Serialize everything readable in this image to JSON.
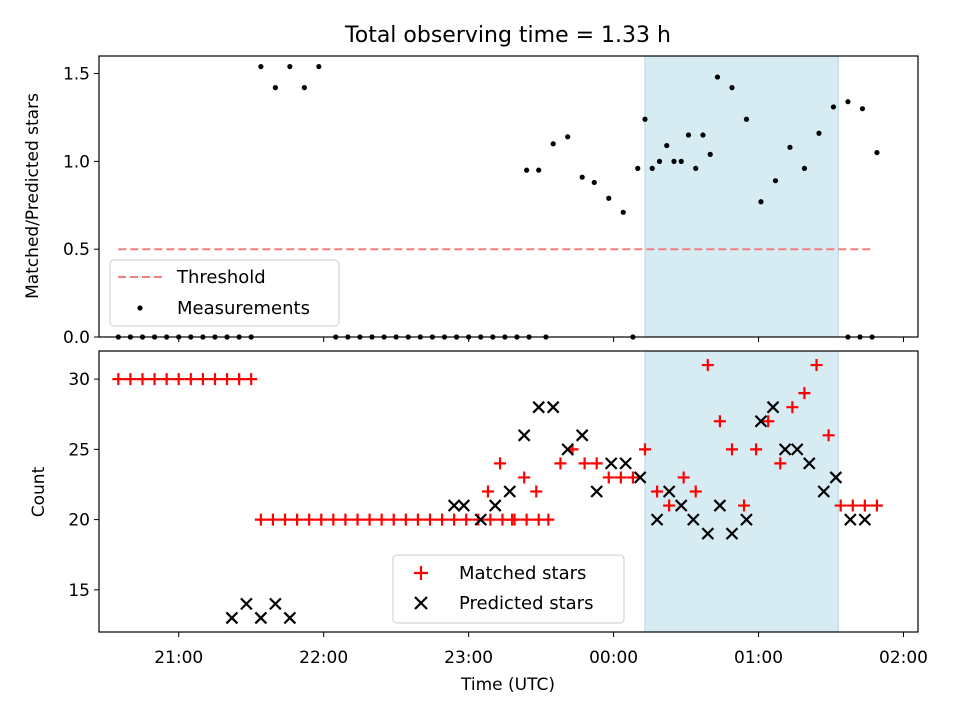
{
  "title": "Total observing time = 1.33 h",
  "colors": {
    "measurements": "#000000",
    "threshold": "#f08080",
    "matched": "#ff0000",
    "predicted": "#000000",
    "span_fill": "#add8e6"
  },
  "chart_data": [
    {
      "type": "scatter",
      "panel": "top",
      "ylabel": "Matched/Predicted stars",
      "xlabel": "",
      "xlim": [
        "20:27",
        "02:06"
      ],
      "ylim": [
        0,
        1.6
      ],
      "yticks": [
        0.0,
        0.5,
        1.0,
        1.5
      ],
      "ytick_labels": [
        "0.0",
        "0.5",
        "1.0",
        "1.5"
      ],
      "highlight_span": [
        "00:13",
        "01:33"
      ],
      "legend": {
        "placement": "lower-left",
        "entries": [
          {
            "label": "Threshold",
            "marker": "dashed-line",
            "color": "#f08080"
          },
          {
            "label": "Measurements",
            "marker": "dot",
            "color": "#000000"
          }
        ]
      },
      "threshold": {
        "name": "Threshold",
        "value": 0.5,
        "x_range": [
          "20:35",
          "01:48"
        ]
      },
      "series": [
        {
          "name": "Measurements",
          "marker": "dot",
          "points": [
            [
              "20:35",
              0.0
            ],
            [
              "20:40",
              0.0
            ],
            [
              "20:45",
              0.0
            ],
            [
              "20:50",
              0.0
            ],
            [
              "20:55",
              0.0
            ],
            [
              "21:00",
              0.0
            ],
            [
              "21:05",
              0.0
            ],
            [
              "21:10",
              0.0
            ],
            [
              "21:15",
              0.0
            ],
            [
              "21:20",
              0.0
            ],
            [
              "21:25",
              0.0
            ],
            [
              "21:30",
              0.0
            ],
            [
              "21:34",
              1.54
            ],
            [
              "21:40",
              1.42
            ],
            [
              "21:46",
              1.54
            ],
            [
              "21:52",
              1.42
            ],
            [
              "21:58",
              1.54
            ],
            [
              "22:05",
              0.0
            ],
            [
              "22:10",
              0.0
            ],
            [
              "22:15",
              0.0
            ],
            [
              "22:20",
              0.0
            ],
            [
              "22:25",
              0.0
            ],
            [
              "22:30",
              0.0
            ],
            [
              "22:35",
              0.0
            ],
            [
              "22:40",
              0.0
            ],
            [
              "22:45",
              0.0
            ],
            [
              "22:50",
              0.0
            ],
            [
              "22:55",
              0.0
            ],
            [
              "23:00",
              0.0
            ],
            [
              "23:05",
              0.0
            ],
            [
              "23:10",
              0.0
            ],
            [
              "23:15",
              0.0
            ],
            [
              "23:20",
              0.0
            ],
            [
              "23:25",
              0.0
            ],
            [
              "23:24",
              0.95
            ],
            [
              "23:29",
              0.95
            ],
            [
              "23:32",
              0.0
            ],
            [
              "23:35",
              1.1
            ],
            [
              "23:41",
              1.14
            ],
            [
              "23:47",
              0.91
            ],
            [
              "23:52",
              0.88
            ],
            [
              "23:58",
              0.79
            ],
            [
              "00:04",
              0.71
            ],
            [
              "00:10",
              0.96
            ],
            [
              "00:16",
              0.96
            ],
            [
              "00:22",
              1.09
            ],
            [
              "00:28",
              1.0
            ],
            [
              "00:34",
              0.96
            ],
            [
              "00:40",
              1.04
            ],
            [
              "00:08",
              0.0
            ],
            [
              "00:13",
              1.24
            ],
            [
              "00:19",
              1.0
            ],
            [
              "00:25",
              1.0
            ],
            [
              "00:31",
              1.15
            ],
            [
              "00:37",
              1.15
            ],
            [
              "00:43",
              1.48
            ],
            [
              "00:49",
              1.42
            ],
            [
              "00:55",
              1.24
            ],
            [
              "01:01",
              0.77
            ],
            [
              "01:07",
              0.89
            ],
            [
              "01:13",
              1.08
            ],
            [
              "01:19",
              0.96
            ],
            [
              "01:25",
              1.16
            ],
            [
              "01:31",
              1.31
            ],
            [
              "01:37",
              1.34
            ],
            [
              "01:43",
              1.3
            ],
            [
              "01:49",
              1.05
            ],
            [
              "01:37",
              0.0
            ],
            [
              "01:42",
              0.0
            ],
            [
              "01:47",
              0.0
            ]
          ]
        }
      ]
    },
    {
      "type": "scatter",
      "panel": "bottom",
      "ylabel": "Count",
      "xlabel": "Time (UTC)",
      "xlim": [
        "20:27",
        "02:06"
      ],
      "ylim": [
        12.0,
        32.0
      ],
      "yticks": [
        15,
        20,
        25,
        30
      ],
      "ytick_labels": [
        "15",
        "20",
        "25",
        "30"
      ],
      "xticks": [
        "21:00",
        "22:00",
        "23:00",
        "00:00",
        "01:00",
        "02:00"
      ],
      "highlight_span": [
        "00:13",
        "01:33"
      ],
      "legend": {
        "placement": "lower-center",
        "entries": [
          {
            "label": "Matched stars",
            "marker": "plus",
            "color": "#ff0000"
          },
          {
            "label": "Predicted stars",
            "marker": "x",
            "color": "#000000"
          }
        ]
      },
      "series": [
        {
          "name": "Matched stars",
          "marker": "plus",
          "points": [
            [
              "20:35",
              30
            ],
            [
              "20:40",
              30
            ],
            [
              "20:45",
              30
            ],
            [
              "20:50",
              30
            ],
            [
              "20:55",
              30
            ],
            [
              "21:00",
              30
            ],
            [
              "21:05",
              30
            ],
            [
              "21:10",
              30
            ],
            [
              "21:15",
              30
            ],
            [
              "21:20",
              30
            ],
            [
              "21:25",
              30
            ],
            [
              "21:30",
              30
            ],
            [
              "21:34",
              20
            ],
            [
              "21:39",
              20
            ],
            [
              "21:44",
              20
            ],
            [
              "21:49",
              20
            ],
            [
              "21:54",
              20
            ],
            [
              "21:59",
              20
            ],
            [
              "22:04",
              20
            ],
            [
              "22:09",
              20
            ],
            [
              "22:14",
              20
            ],
            [
              "22:19",
              20
            ],
            [
              "22:24",
              20
            ],
            [
              "22:29",
              20
            ],
            [
              "22:34",
              20
            ],
            [
              "22:39",
              20
            ],
            [
              "22:44",
              20
            ],
            [
              "22:49",
              20
            ],
            [
              "22:54",
              20
            ],
            [
              "22:59",
              20
            ],
            [
              "23:04",
              20
            ],
            [
              "23:09",
              20
            ],
            [
              "23:14",
              20
            ],
            [
              "23:19",
              20
            ],
            [
              "23:24",
              20
            ],
            [
              "23:29",
              20
            ],
            [
              "23:08",
              22
            ],
            [
              "23:13",
              24
            ],
            [
              "23:18",
              20
            ],
            [
              "23:23",
              23
            ],
            [
              "23:28",
              22
            ],
            [
              "23:33",
              20
            ],
            [
              "23:38",
              24
            ],
            [
              "23:43",
              25
            ],
            [
              "23:48",
              24
            ],
            [
              "23:53",
              24
            ],
            [
              "23:58",
              23
            ],
            [
              "00:03",
              23
            ],
            [
              "00:08",
              23
            ],
            [
              "00:13",
              25
            ],
            [
              "00:18",
              22
            ],
            [
              "00:23",
              21
            ],
            [
              "00:29",
              23
            ],
            [
              "00:34",
              22
            ],
            [
              "00:39",
              31
            ],
            [
              "00:44",
              27
            ],
            [
              "00:49",
              25
            ],
            [
              "00:54",
              21
            ],
            [
              "00:59",
              25
            ],
            [
              "01:04",
              27
            ],
            [
              "01:09",
              24
            ],
            [
              "01:14",
              28
            ],
            [
              "01:19",
              29
            ],
            [
              "01:24",
              31
            ],
            [
              "01:29",
              26
            ],
            [
              "01:34",
              21
            ],
            [
              "01:39",
              21
            ],
            [
              "01:44",
              21
            ],
            [
              "01:49",
              21
            ]
          ]
        },
        {
          "name": "Predicted stars",
          "marker": "x",
          "points": [
            [
              "21:22",
              13
            ],
            [
              "21:28",
              14
            ],
            [
              "21:34",
              13
            ],
            [
              "21:40",
              14
            ],
            [
              "21:46",
              13
            ],
            [
              "22:54",
              21
            ],
            [
              "22:58",
              21
            ],
            [
              "23:05",
              20
            ],
            [
              "23:11",
              21
            ],
            [
              "23:17",
              22
            ],
            [
              "23:23",
              26
            ],
            [
              "23:29",
              28
            ],
            [
              "23:35",
              28
            ],
            [
              "23:41",
              25
            ],
            [
              "23:47",
              26
            ],
            [
              "23:53",
              22
            ],
            [
              "23:59",
              24
            ],
            [
              "00:05",
              24
            ],
            [
              "00:11",
              23
            ],
            [
              "00:18",
              20
            ],
            [
              "00:23",
              22
            ],
            [
              "00:28",
              21
            ],
            [
              "00:33",
              20
            ],
            [
              "00:39",
              19
            ],
            [
              "00:44",
              21
            ],
            [
              "00:49",
              19
            ],
            [
              "00:55",
              20
            ],
            [
              "01:01",
              27
            ],
            [
              "01:06",
              28
            ],
            [
              "01:11",
              25
            ],
            [
              "01:16",
              25
            ],
            [
              "01:21",
              24
            ],
            [
              "01:27",
              22
            ],
            [
              "01:32",
              23
            ],
            [
              "01:38",
              20
            ],
            [
              "01:44",
              20
            ]
          ]
        }
      ]
    }
  ]
}
